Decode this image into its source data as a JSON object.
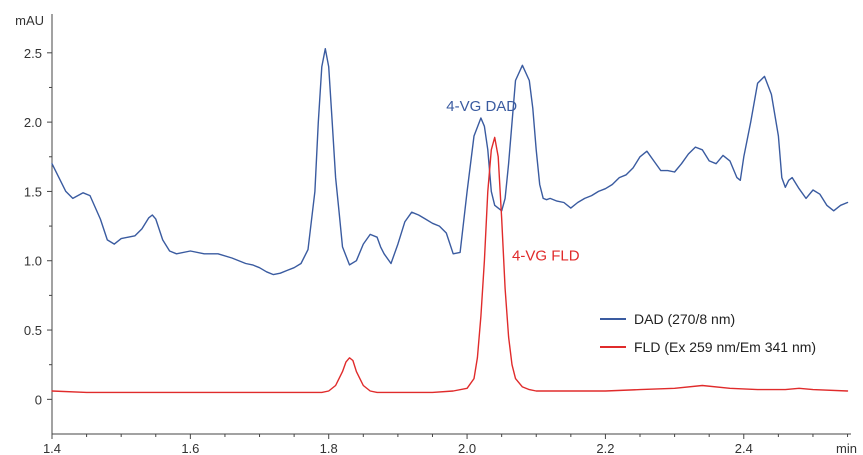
{
  "chart_data": {
    "type": "line",
    "title": "",
    "xlabel": "",
    "ylabel": "",
    "x_unit": "min",
    "y_unit": "mAU",
    "xlim": [
      1.4,
      2.555
    ],
    "ylim": [
      -0.25,
      2.78
    ],
    "x_ticks": [
      1.4,
      1.6,
      1.8,
      2.0,
      2.2,
      2.4
    ],
    "x_tick_labels": [
      "1.4",
      "1.6",
      "1.8",
      "2.0",
      "2.2",
      "2.4"
    ],
    "y_ticks": [
      0,
      0.5,
      1.0,
      1.5,
      2.0,
      2.5
    ],
    "y_tick_labels": [
      "0",
      "0.5",
      "1.0",
      "1.5",
      "2.0",
      "2.5"
    ],
    "grid": false,
    "legend_position": "right",
    "series": [
      {
        "name": "DAD (270/8 nm)",
        "color": "#3a5ba0",
        "x": [
          1.4,
          1.41,
          1.42,
          1.43,
          1.445,
          1.455,
          1.47,
          1.48,
          1.49,
          1.5,
          1.51,
          1.52,
          1.53,
          1.54,
          1.545,
          1.55,
          1.56,
          1.57,
          1.58,
          1.6,
          1.62,
          1.64,
          1.66,
          1.68,
          1.69,
          1.7,
          1.71,
          1.72,
          1.73,
          1.74,
          1.75,
          1.76,
          1.77,
          1.78,
          1.785,
          1.79,
          1.795,
          1.8,
          1.805,
          1.81,
          1.815,
          1.82,
          1.83,
          1.84,
          1.85,
          1.86,
          1.87,
          1.875,
          1.88,
          1.89,
          1.9,
          1.91,
          1.92,
          1.93,
          1.94,
          1.95,
          1.96,
          1.97,
          1.98,
          1.99,
          2.0,
          2.01,
          2.02,
          2.025,
          2.03,
          2.035,
          2.04,
          2.045,
          2.05,
          2.055,
          2.06,
          2.07,
          2.08,
          2.09,
          2.095,
          2.1,
          2.105,
          2.11,
          2.115,
          2.12,
          2.13,
          2.14,
          2.15,
          2.16,
          2.17,
          2.18,
          2.19,
          2.2,
          2.21,
          2.22,
          2.23,
          2.24,
          2.25,
          2.26,
          2.27,
          2.28,
          2.29,
          2.3,
          2.31,
          2.32,
          2.33,
          2.34,
          2.35,
          2.36,
          2.37,
          2.38,
          2.39,
          2.395,
          2.4,
          2.41,
          2.42,
          2.43,
          2.44,
          2.45,
          2.455,
          2.46,
          2.465,
          2.47,
          2.48,
          2.49,
          2.5,
          2.51,
          2.52,
          2.53,
          2.54,
          2.55
        ],
        "values": [
          1.7,
          1.6,
          1.5,
          1.45,
          1.49,
          1.47,
          1.3,
          1.15,
          1.12,
          1.16,
          1.17,
          1.18,
          1.23,
          1.31,
          1.33,
          1.3,
          1.15,
          1.07,
          1.05,
          1.07,
          1.05,
          1.05,
          1.02,
          0.98,
          0.97,
          0.95,
          0.92,
          0.9,
          0.91,
          0.93,
          0.95,
          0.98,
          1.08,
          1.5,
          2.0,
          2.4,
          2.53,
          2.4,
          2.0,
          1.6,
          1.35,
          1.1,
          0.97,
          1.0,
          1.12,
          1.19,
          1.17,
          1.1,
          1.05,
          0.98,
          1.12,
          1.28,
          1.35,
          1.33,
          1.3,
          1.27,
          1.25,
          1.2,
          1.05,
          1.06,
          1.5,
          1.9,
          2.03,
          1.97,
          1.8,
          1.5,
          1.4,
          1.38,
          1.36,
          1.45,
          1.7,
          2.3,
          2.41,
          2.3,
          2.1,
          1.8,
          1.55,
          1.45,
          1.44,
          1.45,
          1.43,
          1.42,
          1.38,
          1.42,
          1.45,
          1.47,
          1.5,
          1.52,
          1.55,
          1.6,
          1.62,
          1.67,
          1.75,
          1.79,
          1.72,
          1.65,
          1.65,
          1.64,
          1.7,
          1.77,
          1.82,
          1.8,
          1.72,
          1.7,
          1.76,
          1.72,
          1.6,
          1.58,
          1.75,
          2.0,
          2.28,
          2.33,
          2.2,
          1.9,
          1.6,
          1.53,
          1.58,
          1.6,
          1.52,
          1.45,
          1.51,
          1.48,
          1.4,
          1.36,
          1.4,
          1.42
        ]
      },
      {
        "name": "FLD (Ex 259 nm/Em 341 nm)",
        "color": "#e02b2b",
        "x": [
          1.4,
          1.45,
          1.5,
          1.55,
          1.6,
          1.65,
          1.7,
          1.75,
          1.79,
          1.8,
          1.81,
          1.82,
          1.825,
          1.83,
          1.835,
          1.84,
          1.85,
          1.86,
          1.87,
          1.9,
          1.95,
          1.98,
          2.0,
          2.01,
          2.015,
          2.02,
          2.025,
          2.03,
          2.035,
          2.04,
          2.045,
          2.05,
          2.055,
          2.06,
          2.065,
          2.07,
          2.08,
          2.09,
          2.1,
          2.15,
          2.2,
          2.25,
          2.3,
          2.34,
          2.38,
          2.42,
          2.46,
          2.48,
          2.5,
          2.55
        ],
        "values": [
          0.06,
          0.05,
          0.05,
          0.05,
          0.05,
          0.05,
          0.05,
          0.05,
          0.05,
          0.06,
          0.1,
          0.2,
          0.27,
          0.3,
          0.28,
          0.2,
          0.1,
          0.06,
          0.05,
          0.05,
          0.05,
          0.06,
          0.08,
          0.15,
          0.3,
          0.6,
          1.0,
          1.5,
          1.8,
          1.89,
          1.75,
          1.3,
          0.8,
          0.45,
          0.25,
          0.15,
          0.09,
          0.07,
          0.06,
          0.06,
          0.06,
          0.07,
          0.08,
          0.1,
          0.08,
          0.07,
          0.07,
          0.08,
          0.07,
          0.06
        ]
      }
    ],
    "annotations": [
      {
        "text": "4-VG DAD",
        "x": 1.97,
        "y": 2.08,
        "color": "#3a5ba0"
      },
      {
        "text": "4-VG FLD",
        "x": 2.065,
        "y": 1.0,
        "color": "#e02b2b"
      }
    ]
  }
}
